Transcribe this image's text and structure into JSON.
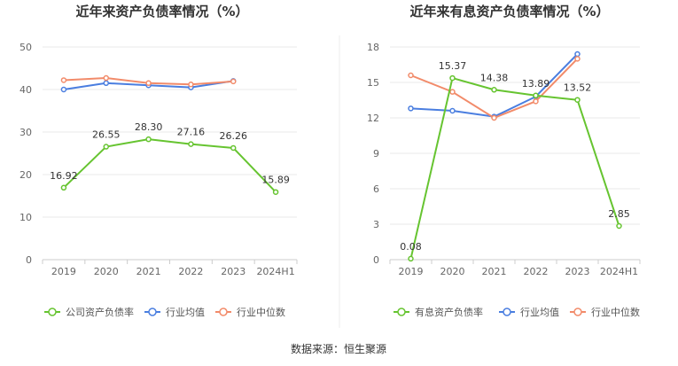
{
  "colors": {
    "company": "#66c430",
    "avg": "#4a7ee0",
    "median": "#f28b6a",
    "grid": "#e8e8e8",
    "axis": "#cccccc"
  },
  "source": "数据来源：恒生聚源",
  "chart_data": [
    {
      "type": "line",
      "title": "近年来资产负债率情况（%）",
      "categories": [
        "2019",
        "2020",
        "2021",
        "2022",
        "2023",
        "2024H1"
      ],
      "ylim": [
        0,
        50
      ],
      "yticks": [
        0,
        10,
        20,
        30,
        40,
        50
      ],
      "legend_position": "bottom",
      "grid": true,
      "series": [
        {
          "name": "公司资产负债率",
          "key": "company",
          "values": [
            16.92,
            26.55,
            28.3,
            27.16,
            26.26,
            15.89
          ],
          "labels": [
            "16.92",
            "26.55",
            "28.30",
            "27.16",
            "26.26",
            "15.89"
          ]
        },
        {
          "name": "行业均值",
          "key": "avg",
          "values": [
            40.0,
            41.5,
            41.0,
            40.5,
            42.0,
            null
          ]
        },
        {
          "name": "行业中位数",
          "key": "median",
          "values": [
            42.2,
            42.7,
            41.5,
            41.2,
            41.9,
            null
          ]
        }
      ]
    },
    {
      "type": "line",
      "title": "近年来有息资产负债率情况（%）",
      "categories": [
        "2019",
        "2020",
        "2021",
        "2022",
        "2023",
        "2024H1"
      ],
      "ylim": [
        0,
        18
      ],
      "yticks": [
        0,
        3,
        6,
        9,
        12,
        15,
        18
      ],
      "legend_position": "bottom",
      "grid": true,
      "series": [
        {
          "name": "有息资产负债率",
          "key": "company",
          "values": [
            0.08,
            15.37,
            14.38,
            13.89,
            13.52,
            2.85
          ],
          "labels": [
            "0.08",
            "15.37",
            "14.38",
            "13.89",
            "13.52",
            "2.85"
          ]
        },
        {
          "name": "行业均值",
          "key": "avg",
          "values": [
            12.8,
            12.6,
            12.1,
            13.8,
            17.4,
            null
          ]
        },
        {
          "name": "行业中位数",
          "key": "median",
          "values": [
            15.6,
            14.2,
            12.0,
            13.4,
            17.0,
            null
          ]
        }
      ]
    }
  ]
}
